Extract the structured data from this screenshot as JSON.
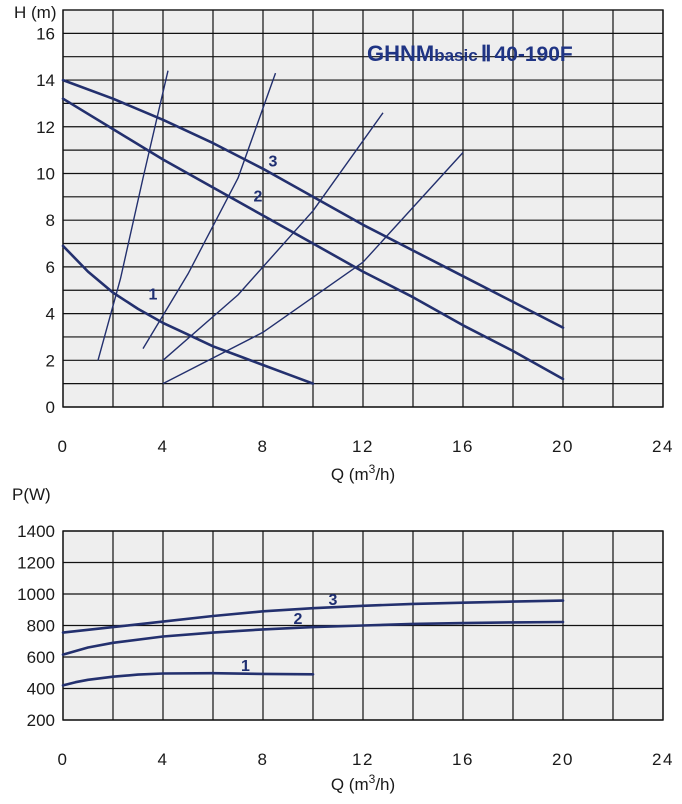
{
  "chart_data": [
    {
      "type": "line",
      "title": "GHNMbasicⅡ40-190F",
      "title_parts": {
        "main": "GHNM",
        "small": "basic",
        "mark": "Ⅱ",
        "model": "40-190F"
      },
      "xlabel": "Q (m³/h)",
      "xlabel_parts": {
        "pre": "Q (m",
        "sup": "3",
        "post": "/h)"
      },
      "ylabel": "H (m)",
      "xlim": [
        0,
        24
      ],
      "ylim": [
        0,
        17
      ],
      "x_ticks": [
        "0",
        "4",
        "8",
        "12",
        "16",
        "20",
        "24"
      ],
      "y_ticks": [
        "0",
        "2",
        "4",
        "6",
        "8",
        "10",
        "12",
        "14",
        "16"
      ],
      "grid": true,
      "series": [
        {
          "name": "1",
          "x": [
            0,
            1,
            2,
            3,
            4,
            5,
            6,
            7,
            8,
            9,
            10
          ],
          "y": [
            6.9,
            5.8,
            4.9,
            4.2,
            3.6,
            3.1,
            2.6,
            2.2,
            1.8,
            1.4,
            1.0
          ]
        },
        {
          "name": "2",
          "x": [
            0,
            2,
            4,
            6,
            8,
            10,
            12,
            14,
            16,
            18,
            20
          ],
          "y": [
            13.2,
            11.9,
            10.6,
            9.4,
            8.2,
            7.0,
            5.8,
            4.7,
            3.5,
            2.4,
            1.2
          ]
        },
        {
          "name": "3",
          "x": [
            0,
            2,
            4,
            6,
            8,
            10,
            12,
            14,
            16,
            18,
            20
          ],
          "y": [
            14.0,
            13.2,
            12.3,
            11.3,
            10.2,
            9.0,
            7.8,
            6.7,
            5.6,
            4.5,
            3.4
          ]
        }
      ],
      "system_curves": [
        {
          "x": [
            1.4,
            2.3,
            3.2,
            4.2
          ],
          "y": [
            2.0,
            5.5,
            9.8,
            14.4
          ]
        },
        {
          "x": [
            3.2,
            5.0,
            7.0,
            8.5
          ],
          "y": [
            2.5,
            5.7,
            9.8,
            14.3
          ]
        },
        {
          "x": [
            4.0,
            7.0,
            10.0,
            12.8
          ],
          "y": [
            2.0,
            4.8,
            8.4,
            12.6
          ]
        },
        {
          "x": [
            4.0,
            8.0,
            12.0,
            16.0
          ],
          "y": [
            1.0,
            3.2,
            6.2,
            10.9
          ]
        }
      ],
      "curve_labels": [
        {
          "text": "1",
          "x": 3.6,
          "y": 4.6
        },
        {
          "text": "2",
          "x": 7.8,
          "y": 8.8
        },
        {
          "text": "3",
          "x": 8.4,
          "y": 10.3
        }
      ]
    },
    {
      "type": "line",
      "title": "",
      "xlabel": "Q (m³/h)",
      "xlabel_parts": {
        "pre": "Q (m",
        "sup": "3",
        "post": "/h)"
      },
      "ylabel": "P(W)",
      "xlim": [
        0,
        24
      ],
      "ylim": [
        200,
        1400
      ],
      "x_ticks": [
        "0",
        "4",
        "8",
        "12",
        "16",
        "20",
        "24"
      ],
      "y_ticks": [
        "200",
        "400",
        "600",
        "800",
        "1000",
        "1200",
        "1400"
      ],
      "grid": true,
      "series": [
        {
          "name": "1",
          "x": [
            0,
            0.5,
            1,
            2,
            3,
            4,
            6,
            8,
            10
          ],
          "y": [
            420,
            440,
            455,
            475,
            488,
            495,
            497,
            493,
            490
          ]
        },
        {
          "name": "2",
          "x": [
            0,
            1,
            2,
            4,
            6,
            8,
            10,
            12,
            14,
            16,
            18,
            20
          ],
          "y": [
            615,
            660,
            690,
            730,
            755,
            775,
            790,
            800,
            810,
            815,
            820,
            822
          ]
        },
        {
          "name": "3",
          "x": [
            0,
            2,
            4,
            6,
            8,
            10,
            12,
            14,
            16,
            18,
            20
          ],
          "y": [
            755,
            790,
            825,
            860,
            890,
            910,
            925,
            937,
            945,
            952,
            958
          ]
        }
      ],
      "curve_labels": [
        {
          "text": "1",
          "x": 7.3,
          "y": 512
        },
        {
          "text": "2",
          "x": 9.4,
          "y": 810
        },
        {
          "text": "3",
          "x": 10.8,
          "y": 930
        }
      ]
    }
  ],
  "colors": {
    "background": "#ffffff",
    "plot_background": "#eeeeee",
    "grid": "#111111",
    "curve": "#23306e",
    "title": "#1f3484",
    "text": "#1a1a1a"
  }
}
